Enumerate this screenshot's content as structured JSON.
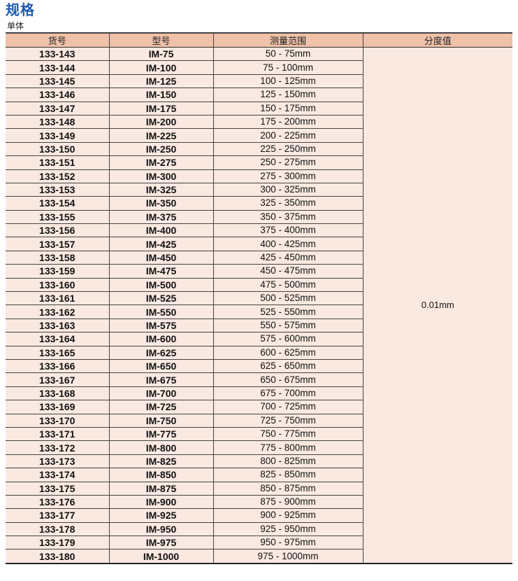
{
  "title": "规格",
  "subtitle": "单体",
  "headers": [
    "货号",
    "型号",
    "测量范围",
    "分度值"
  ],
  "resolution": "0.01mm",
  "rows": [
    [
      "133-143",
      "IM-75",
      "50 - 75mm"
    ],
    [
      "133-144",
      "IM-100",
      "75 - 100mm"
    ],
    [
      "133-145",
      "IM-125",
      "100 - 125mm"
    ],
    [
      "133-146",
      "IM-150",
      "125 - 150mm"
    ],
    [
      "133-147",
      "IM-175",
      "150 - 175mm"
    ],
    [
      "133-148",
      "IM-200",
      "175 - 200mm"
    ],
    [
      "133-149",
      "IM-225",
      "200 - 225mm"
    ],
    [
      "133-150",
      "IM-250",
      "225 - 250mm"
    ],
    [
      "133-151",
      "IM-275",
      "250 - 275mm"
    ],
    [
      "133-152",
      "IM-300",
      "275 - 300mm"
    ],
    [
      "133-153",
      "IM-325",
      "300 - 325mm"
    ],
    [
      "133-154",
      "IM-350",
      "325 - 350mm"
    ],
    [
      "133-155",
      "IM-375",
      "350 - 375mm"
    ],
    [
      "133-156",
      "IM-400",
      "375 - 400mm"
    ],
    [
      "133-157",
      "IM-425",
      "400 - 425mm"
    ],
    [
      "133-158",
      "IM-450",
      "425 - 450mm"
    ],
    [
      "133-159",
      "IM-475",
      "450 - 475mm"
    ],
    [
      "133-160",
      "IM-500",
      "475 - 500mm"
    ],
    [
      "133-161",
      "IM-525",
      "500 - 525mm"
    ],
    [
      "133-162",
      "IM-550",
      "525 - 550mm"
    ],
    [
      "133-163",
      "IM-575",
      "550 - 575mm"
    ],
    [
      "133-164",
      "IM-600",
      "575 - 600mm"
    ],
    [
      "133-165",
      "IM-625",
      "600 - 625mm"
    ],
    [
      "133-166",
      "IM-650",
      "625 - 650mm"
    ],
    [
      "133-167",
      "IM-675",
      "650 - 675mm"
    ],
    [
      "133-168",
      "IM-700",
      "675 - 700mm"
    ],
    [
      "133-169",
      "IM-725",
      "700 - 725mm"
    ],
    [
      "133-170",
      "IM-750",
      "725 - 750mm"
    ],
    [
      "133-171",
      "IM-775",
      "750 - 775mm"
    ],
    [
      "133-172",
      "IM-800",
      "775 - 800mm"
    ],
    [
      "133-173",
      "IM-825",
      "800 - 825mm"
    ],
    [
      "133-174",
      "IM-850",
      "825 - 850mm"
    ],
    [
      "133-175",
      "IM-875",
      "850 - 875mm"
    ],
    [
      "133-176",
      "IM-900",
      "875 - 900mm"
    ],
    [
      "133-177",
      "IM-925",
      "900 - 925mm"
    ],
    [
      "133-178",
      "IM-950",
      "925 - 950mm"
    ],
    [
      "133-179",
      "IM-975",
      "950 - 975mm"
    ],
    [
      "133-180",
      "IM-1000",
      "975 - 1000mm"
    ]
  ]
}
